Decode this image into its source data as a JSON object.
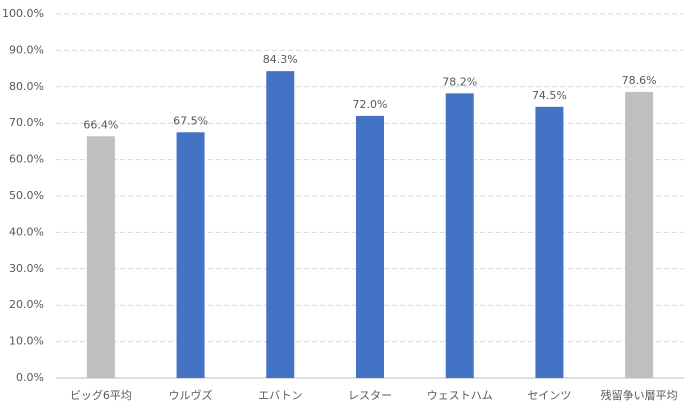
{
  "chart_data": {
    "type": "bar",
    "categories": [
      "ビッグ6平均",
      "ウルヴズ",
      "エバトン",
      "レスター",
      "ウェストハム",
      "セインツ",
      "残留争い層平均"
    ],
    "values": [
      66.4,
      67.5,
      84.3,
      72.0,
      78.2,
      74.5,
      78.6
    ],
    "value_labels": [
      "66.4%",
      "67.5%",
      "84.3%",
      "72.0%",
      "78.2%",
      "74.5%",
      "78.6%"
    ],
    "colors": [
      "#bfbfbf",
      "#4472c4",
      "#4472c4",
      "#4472c4",
      "#4472c4",
      "#4472c4",
      "#bfbfbf"
    ],
    "ylim": [
      0,
      100
    ],
    "yticks": [
      {
        "value": 0,
        "label": "0.0%"
      },
      {
        "value": 10,
        "label": "10.0%"
      },
      {
        "value": 20,
        "label": "20.0%"
      },
      {
        "value": 30,
        "label": "30.0%"
      },
      {
        "value": 40,
        "label": "40.0%"
      },
      {
        "value": 50,
        "label": "50.0%"
      },
      {
        "value": 60,
        "label": "60.0%"
      },
      {
        "value": 70,
        "label": "70.0%"
      },
      {
        "value": 80,
        "label": "80.0%"
      },
      {
        "value": 90,
        "label": "90.0%"
      },
      {
        "value": 100,
        "label": "100.0%"
      }
    ],
    "grid": true
  }
}
